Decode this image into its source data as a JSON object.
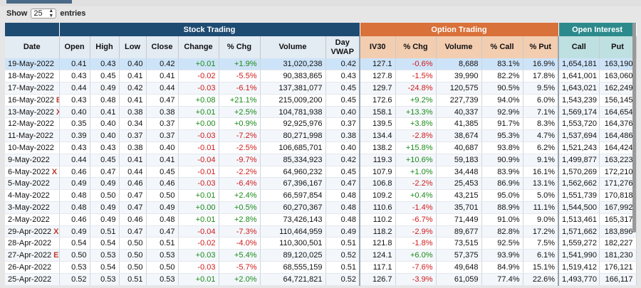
{
  "controls": {
    "show_label": "Show",
    "entries_value": "25",
    "entries_label": "entries"
  },
  "groups": {
    "stock": "Stock Trading",
    "option": "Option Trading",
    "oi": "Open Interest"
  },
  "headers": {
    "date": "Date",
    "open": "Open",
    "high": "High",
    "low": "Low",
    "close": "Close",
    "change": "Change",
    "pchg": "% Chg",
    "volume": "Volume",
    "vwap_l1": "Day",
    "vwap_l2": "VWAP",
    "iv30": "IV30",
    "opt_pchg": "% Chg",
    "opt_volume": "Volume",
    "pcall": "% Call",
    "pput": "% Put",
    "call": "Call",
    "put": "Put"
  },
  "rows": [
    {
      "date": "19-May-2022",
      "mark": "",
      "open": "0.41",
      "high": "0.43",
      "low": "0.40",
      "close": "0.42",
      "change": "+0.01",
      "pchg": "+1.9%",
      "volume": "31,020,238",
      "vwap": "0.42",
      "iv30": "127.1",
      "opt_pchg": "-0.6%",
      "opt_volume": "8,688",
      "pcall": "83.1%",
      "pput": "16.9%",
      "call": "1,654,181",
      "put": "163,190"
    },
    {
      "date": "18-May-2022",
      "mark": "",
      "open": "0.43",
      "high": "0.45",
      "low": "0.41",
      "close": "0.41",
      "change": "-0.02",
      "pchg": "-5.5%",
      "volume": "90,383,865",
      "vwap": "0.43",
      "iv30": "127.8",
      "opt_pchg": "-1.5%",
      "opt_volume": "39,990",
      "pcall": "82.2%",
      "pput": "17.8%",
      "call": "1,641,001",
      "put": "163,060"
    },
    {
      "date": "17-May-2022",
      "mark": "",
      "open": "0.44",
      "high": "0.49",
      "low": "0.42",
      "close": "0.44",
      "change": "-0.03",
      "pchg": "-6.1%",
      "volume": "137,381,077",
      "vwap": "0.45",
      "iv30": "129.7",
      "opt_pchg": "-24.8%",
      "opt_volume": "120,575",
      "pcall": "90.5%",
      "pput": "9.5%",
      "call": "1,643,021",
      "put": "162,249"
    },
    {
      "date": "16-May-2022",
      "mark": "E",
      "open": "0.43",
      "high": "0.48",
      "low": "0.41",
      "close": "0.47",
      "change": "+0.08",
      "pchg": "+21.1%",
      "volume": "215,009,200",
      "vwap": "0.45",
      "iv30": "172.6",
      "opt_pchg": "+9.2%",
      "opt_volume": "227,739",
      "pcall": "94.0%",
      "pput": "6.0%",
      "call": "1,543,239",
      "put": "156,145"
    },
    {
      "date": "13-May-2022",
      "mark": "X",
      "open": "0.40",
      "high": "0.41",
      "low": "0.38",
      "close": "0.38",
      "change": "+0.01",
      "pchg": "+2.5%",
      "volume": "104,781,938",
      "vwap": "0.40",
      "iv30": "158.1",
      "opt_pchg": "+13.3%",
      "opt_volume": "40,337",
      "pcall": "92.9%",
      "pput": "7.1%",
      "call": "1,569,174",
      "put": "164,654"
    },
    {
      "date": "12-May-2022",
      "mark": "",
      "open": "0.35",
      "high": "0.40",
      "low": "0.34",
      "close": "0.37",
      "change": "+0.00",
      "pchg": "+0.9%",
      "volume": "92,925,976",
      "vwap": "0.37",
      "iv30": "139.5",
      "opt_pchg": "+3.8%",
      "opt_volume": "41,385",
      "pcall": "91.7%",
      "pput": "8.3%",
      "call": "1,553,720",
      "put": "164,376"
    },
    {
      "date": "11-May-2022",
      "mark": "",
      "open": "0.39",
      "high": "0.40",
      "low": "0.37",
      "close": "0.37",
      "change": "-0.03",
      "pchg": "-7.2%",
      "volume": "80,271,998",
      "vwap": "0.38",
      "iv30": "134.4",
      "opt_pchg": "-2.8%",
      "opt_volume": "38,674",
      "pcall": "95.3%",
      "pput": "4.7%",
      "call": "1,537,694",
      "put": "164,486"
    },
    {
      "date": "10-May-2022",
      "mark": "",
      "open": "0.43",
      "high": "0.43",
      "low": "0.38",
      "close": "0.40",
      "change": "-0.01",
      "pchg": "-2.5%",
      "volume": "106,685,701",
      "vwap": "0.40",
      "iv30": "138.2",
      "opt_pchg": "+15.8%",
      "opt_volume": "40,687",
      "pcall": "93.8%",
      "pput": "6.2%",
      "call": "1,521,243",
      "put": "164,424"
    },
    {
      "date": "9-May-2022",
      "mark": "",
      "open": "0.44",
      "high": "0.45",
      "low": "0.41",
      "close": "0.41",
      "change": "-0.04",
      "pchg": "-9.7%",
      "volume": "85,334,923",
      "vwap": "0.42",
      "iv30": "119.3",
      "opt_pchg": "+10.6%",
      "opt_volume": "59,183",
      "pcall": "90.9%",
      "pput": "9.1%",
      "call": "1,499,877",
      "put": "163,223"
    },
    {
      "date": "6-May-2022",
      "mark": "X",
      "open": "0.46",
      "high": "0.47",
      "low": "0.44",
      "close": "0.45",
      "change": "-0.01",
      "pchg": "-2.2%",
      "volume": "64,960,232",
      "vwap": "0.45",
      "iv30": "107.9",
      "opt_pchg": "+1.0%",
      "opt_volume": "34,448",
      "pcall": "83.9%",
      "pput": "16.1%",
      "call": "1,570,269",
      "put": "172,210"
    },
    {
      "date": "5-May-2022",
      "mark": "",
      "open": "0.49",
      "high": "0.49",
      "low": "0.46",
      "close": "0.46",
      "change": "-0.03",
      "pchg": "-6.4%",
      "volume": "67,396,167",
      "vwap": "0.47",
      "iv30": "106.8",
      "opt_pchg": "-2.2%",
      "opt_volume": "25,453",
      "pcall": "86.9%",
      "pput": "13.1%",
      "call": "1,562,662",
      "put": "171,276"
    },
    {
      "date": "4-May-2022",
      "mark": "",
      "open": "0.48",
      "high": "0.50",
      "low": "0.47",
      "close": "0.50",
      "change": "+0.01",
      "pchg": "+2.4%",
      "volume": "66,597,854",
      "vwap": "0.48",
      "iv30": "109.2",
      "opt_pchg": "+0.4%",
      "opt_volume": "43,215",
      "pcall": "95.0%",
      "pput": "5.0%",
      "call": "1,551,739",
      "put": "170,818"
    },
    {
      "date": "3-May-2022",
      "mark": "",
      "open": "0.48",
      "high": "0.49",
      "low": "0.47",
      "close": "0.49",
      "change": "+0.00",
      "pchg": "+0.5%",
      "volume": "60,270,367",
      "vwap": "0.48",
      "iv30": "110.6",
      "opt_pchg": "-1.4%",
      "opt_volume": "35,701",
      "pcall": "88.9%",
      "pput": "11.1%",
      "call": "1,544,500",
      "put": "167,992"
    },
    {
      "date": "2-May-2022",
      "mark": "",
      "open": "0.46",
      "high": "0.49",
      "low": "0.46",
      "close": "0.48",
      "change": "+0.01",
      "pchg": "+2.8%",
      "volume": "73,426,143",
      "vwap": "0.48",
      "iv30": "110.2",
      "opt_pchg": "-6.7%",
      "opt_volume": "71,449",
      "pcall": "91.0%",
      "pput": "9.0%",
      "call": "1,513,461",
      "put": "165,317"
    },
    {
      "date": "29-Apr-2022",
      "mark": "X",
      "open": "0.49",
      "high": "0.51",
      "low": "0.47",
      "close": "0.47",
      "change": "-0.04",
      "pchg": "-7.3%",
      "volume": "110,464,959",
      "vwap": "0.49",
      "iv30": "118.2",
      "opt_pchg": "-2.9%",
      "opt_volume": "89,677",
      "pcall": "82.8%",
      "pput": "17.2%",
      "call": "1,571,662",
      "put": "183,896"
    },
    {
      "date": "28-Apr-2022",
      "mark": "",
      "open": "0.54",
      "high": "0.54",
      "low": "0.50",
      "close": "0.51",
      "change": "-0.02",
      "pchg": "-4.0%",
      "volume": "110,300,501",
      "vwap": "0.51",
      "iv30": "121.8",
      "opt_pchg": "-1.8%",
      "opt_volume": "73,515",
      "pcall": "92.5%",
      "pput": "7.5%",
      "call": "1,559,272",
      "put": "182,227"
    },
    {
      "date": "27-Apr-2022",
      "mark": "E",
      "open": "0.50",
      "high": "0.53",
      "low": "0.50",
      "close": "0.53",
      "change": "+0.03",
      "pchg": "+5.4%",
      "volume": "89,120,025",
      "vwap": "0.52",
      "iv30": "124.1",
      "opt_pchg": "+6.0%",
      "opt_volume": "57,375",
      "pcall": "93.9%",
      "pput": "6.1%",
      "call": "1,541,990",
      "put": "181,230"
    },
    {
      "date": "26-Apr-2022",
      "mark": "",
      "open": "0.53",
      "high": "0.54",
      "low": "0.50",
      "close": "0.50",
      "change": "-0.03",
      "pchg": "-5.7%",
      "volume": "68,555,159",
      "vwap": "0.51",
      "iv30": "117.1",
      "opt_pchg": "-7.6%",
      "opt_volume": "49,648",
      "pcall": "84.9%",
      "pput": "15.1%",
      "call": "1,519,412",
      "put": "176,121"
    },
    {
      "date": "25-Apr-2022",
      "mark": "",
      "open": "0.52",
      "high": "0.53",
      "low": "0.51",
      "close": "0.53",
      "change": "+0.01",
      "pchg": "+2.0%",
      "volume": "64,721,821",
      "vwap": "0.52",
      "iv30": "126.7",
      "opt_pchg": "-3.9%",
      "opt_volume": "61,059",
      "pcall": "77.4%",
      "pput": "22.6%",
      "call": "1,493,770",
      "put": "166,117"
    }
  ]
}
